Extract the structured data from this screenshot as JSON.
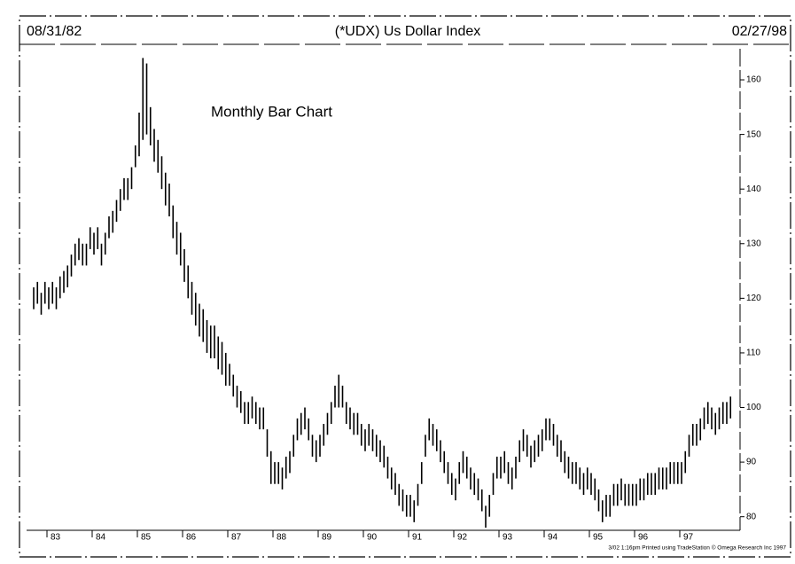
{
  "chart_data": {
    "type": "hilo",
    "title": "(*UDX) Us Dollar Index",
    "start_date": "08/31/82",
    "end_date": "02/27/98",
    "annotation": "Monthly Bar Chart",
    "footer": "3/02 1:16pm Printed using TradeStation © Omega Research Inc 1997",
    "color": "#000000",
    "ylim": [
      78,
      166.5
    ],
    "yticks": [
      80,
      90,
      100,
      110,
      120,
      130,
      140,
      150,
      160
    ],
    "categories": [
      null,
      null,
      null,
      null,
      "83",
      null,
      null,
      null,
      null,
      null,
      null,
      null,
      null,
      null,
      null,
      null,
      "84",
      null,
      null,
      null,
      null,
      null,
      null,
      null,
      null,
      null,
      null,
      null,
      "85",
      null,
      null,
      null,
      null,
      null,
      null,
      null,
      null,
      null,
      null,
      null,
      "86",
      null,
      null,
      null,
      null,
      null,
      null,
      null,
      null,
      null,
      null,
      null,
      "87",
      null,
      null,
      null,
      null,
      null,
      null,
      null,
      null,
      null,
      null,
      null,
      "88",
      null,
      null,
      null,
      null,
      null,
      null,
      null,
      null,
      null,
      null,
      null,
      "89",
      null,
      null,
      null,
      null,
      null,
      null,
      null,
      null,
      null,
      null,
      null,
      "90",
      null,
      null,
      null,
      null,
      null,
      null,
      null,
      null,
      null,
      null,
      null,
      "91",
      null,
      null,
      null,
      null,
      null,
      null,
      null,
      null,
      null,
      null,
      null,
      "92",
      null,
      null,
      null,
      null,
      null,
      null,
      null,
      null,
      null,
      null,
      null,
      "93",
      null,
      null,
      null,
      null,
      null,
      null,
      null,
      null,
      null,
      null,
      null,
      "94",
      null,
      null,
      null,
      null,
      null,
      null,
      null,
      null,
      null,
      null,
      null,
      "95",
      null,
      null,
      null,
      null,
      null,
      null,
      null,
      null,
      null,
      null,
      null,
      "96",
      null,
      null,
      null,
      null,
      null,
      null,
      null,
      null,
      null,
      null,
      null,
      "97",
      null,
      null,
      null,
      null,
      null,
      null,
      null,
      null,
      null,
      null,
      null,
      null,
      null
    ],
    "high": [
      122,
      123,
      121,
      123,
      122,
      123,
      122,
      124,
      125,
      126,
      128,
      130,
      131,
      130,
      130,
      133,
      132,
      133,
      130,
      132,
      135,
      136,
      138,
      140,
      142,
      142,
      144,
      148,
      154,
      164,
      163,
      155,
      151,
      149,
      146,
      143,
      141,
      137,
      134,
      132,
      129,
      126,
      123,
      121,
      119,
      118,
      116,
      115,
      115,
      113,
      112,
      110,
      108,
      106,
      104,
      103,
      101,
      101,
      102,
      101,
      100,
      100,
      96,
      92,
      90,
      90,
      89,
      91,
      92,
      95,
      98,
      99,
      100,
      98,
      95,
      94,
      95,
      97,
      99,
      101,
      104,
      106,
      104,
      101,
      100,
      99,
      99,
      97,
      96,
      97,
      96,
      95,
      94,
      93,
      91,
      89,
      88,
      86,
      85,
      84,
      84,
      83,
      86,
      90,
      95,
      98,
      97,
      96,
      94,
      92,
      90,
      88,
      87,
      90,
      92,
      91,
      89,
      88,
      87,
      85,
      82,
      84,
      88,
      91,
      91,
      92,
      90,
      89,
      91,
      94,
      96,
      95,
      93,
      94,
      95,
      96,
      98,
      98,
      97,
      95,
      94,
      92,
      91,
      90,
      90,
      89,
      88,
      89,
      88,
      87,
      85,
      83,
      84,
      84,
      86,
      86,
      87,
      86,
      86,
      86,
      86,
      87,
      87,
      88,
      88,
      88,
      89,
      89,
      89,
      90,
      90,
      90,
      90,
      92,
      95,
      97,
      97,
      98,
      100,
      101,
      100,
      99,
      100,
      101,
      101,
      102
    ],
    "low": [
      118,
      119,
      117,
      119,
      118,
      119,
      118,
      120,
      121,
      122,
      124,
      126,
      127,
      126,
      126,
      129,
      128,
      129,
      126,
      128,
      131,
      132,
      134,
      136,
      138,
      138,
      140,
      144,
      146,
      149,
      150,
      148,
      145,
      143,
      140,
      137,
      135,
      131,
      128,
      126,
      123,
      120,
      117,
      115,
      113,
      112,
      110,
      109,
      109,
      107,
      106,
      104,
      104,
      102,
      100,
      99,
      97,
      97,
      98,
      97,
      96,
      96,
      91,
      86,
      86,
      86,
      85,
      87,
      88,
      91,
      94,
      95,
      96,
      94,
      91,
      90,
      91,
      93,
      95,
      97,
      100,
      100,
      100,
      97,
      96,
      95,
      95,
      93,
      92,
      93,
      92,
      91,
      90,
      89,
      87,
      85,
      84,
      82,
      81,
      80,
      80,
      79,
      82,
      86,
      91,
      94,
      93,
      92,
      90,
      88,
      86,
      84,
      83,
      86,
      88,
      87,
      85,
      84,
      83,
      81,
      78,
      80,
      84,
      87,
      87,
      88,
      86,
      85,
      87,
      90,
      92,
      91,
      89,
      90,
      91,
      92,
      94,
      94,
      93,
      91,
      90,
      88,
      87,
      86,
      86,
      85,
      84,
      85,
      84,
      83,
      81,
      79,
      80,
      80,
      82,
      82,
      83,
      82,
      82,
      82,
      82,
      83,
      83,
      84,
      84,
      84,
      85,
      85,
      85,
      86,
      86,
      86,
      86,
      88,
      91,
      93,
      93,
      94,
      96,
      97,
      96,
      95,
      96,
      97,
      97,
      98
    ]
  }
}
